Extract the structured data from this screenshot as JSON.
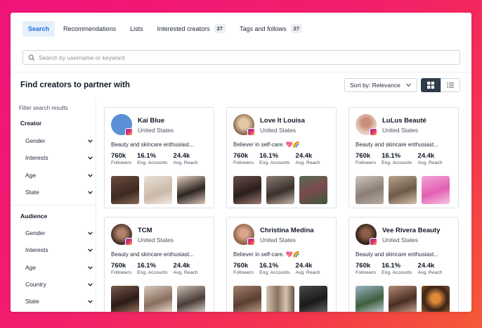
{
  "tabs": [
    {
      "label": "Search",
      "active": true
    },
    {
      "label": "Recommendations"
    },
    {
      "label": "Lists"
    },
    {
      "label": "Interested creators",
      "count": "27"
    },
    {
      "label": "Tags and follows",
      "count": "27"
    }
  ],
  "search": {
    "placeholder": "Search by username or keyword",
    "value": ""
  },
  "page_title": "Find creators to partner with",
  "sort": {
    "label": "Sort by: Relevance"
  },
  "view": {
    "selected": "grid"
  },
  "sidebar": {
    "title": "Filter search results",
    "creator_section": "Creator",
    "creator_filters": [
      "Gender",
      "Interests",
      "Age",
      "State"
    ],
    "audience_section": "Audience",
    "audience_filters": [
      "Gender",
      "Interests",
      "Age",
      "Country",
      "State"
    ]
  },
  "stat_labels": {
    "followers": "Followers",
    "eng": "Eng. Accounts",
    "reach": "Avg. Reach"
  },
  "creators": [
    {
      "name": "Kai Blue",
      "location": "United States",
      "bio": "Beauty and skincare enthusiast...",
      "followers": "760k",
      "eng": "16.1%",
      "reach": "24.4k"
    },
    {
      "name": "Love It Louisa",
      "location": "United States",
      "bio": "Believer in self-care. 💖🌈",
      "followers": "760k",
      "eng": "16.1%",
      "reach": "24.4k"
    },
    {
      "name": "LuLus Beauté",
      "location": "United States",
      "bio": "Beauty and skincare enthusiast...",
      "followers": "760k",
      "eng": "16.1%",
      "reach": "24.4k"
    },
    {
      "name": "TCM",
      "location": "United States",
      "bio": "Beauty and skincare enthusiast...",
      "followers": "760k",
      "eng": "16.1%",
      "reach": "24.4k"
    },
    {
      "name": "Christina Medina",
      "location": "United States",
      "bio": "Believer in self-care. 💖🌈",
      "followers": "760k",
      "eng": "16.1%",
      "reach": "24.4k"
    },
    {
      "name": "Vee Rivera Beauty",
      "location": "United States",
      "bio": "Beauty and skincare enthusiast...",
      "followers": "760k",
      "eng": "16.1%",
      "reach": "24.4k"
    }
  ],
  "colors": {
    "accent": "#1e6fd9",
    "active_tab_bg": "#e6f0fb",
    "view_selected": "#2f3b49"
  }
}
